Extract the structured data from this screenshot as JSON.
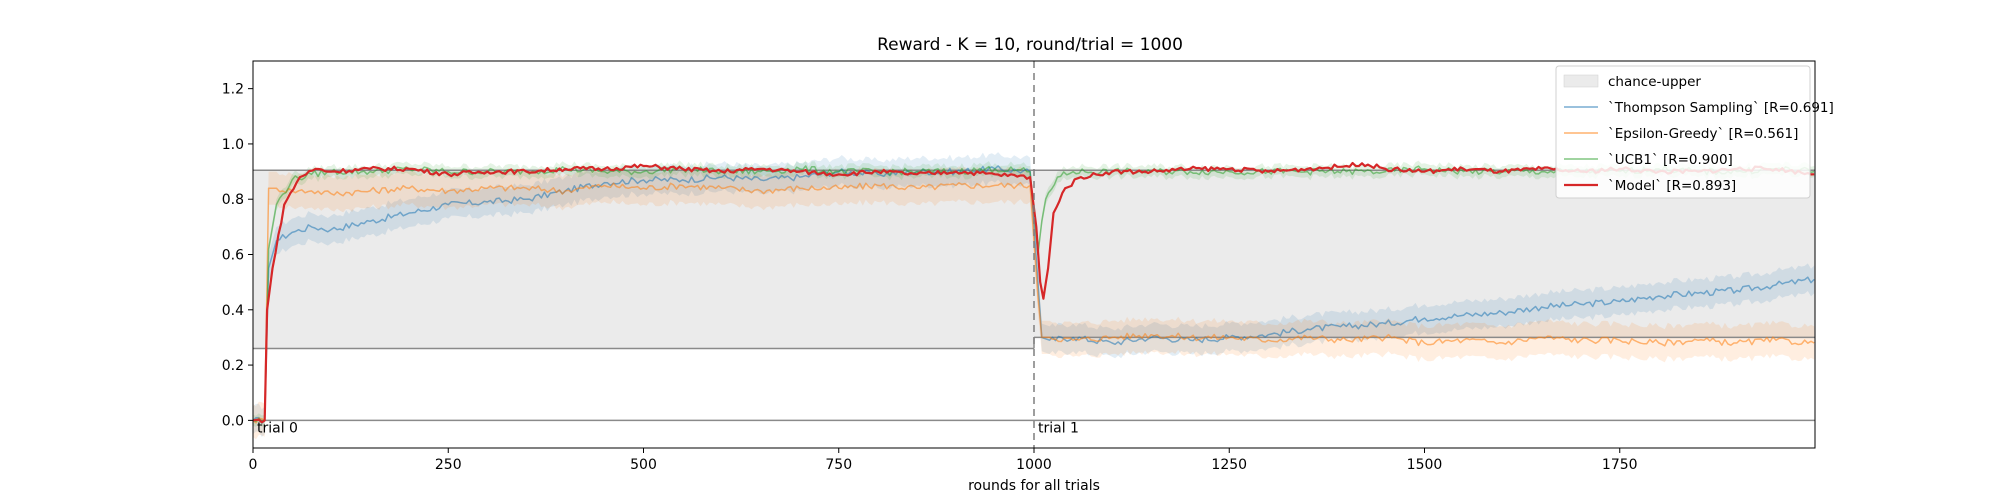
{
  "chart_data": {
    "type": "line",
    "title": "Reward - K = 10, round/trial = 1000",
    "xlabel": "rounds for all trials",
    "ylabel": "",
    "xlim": [
      0,
      2000
    ],
    "ylim": [
      -0.1,
      1.3
    ],
    "xticks": [
      0,
      250,
      500,
      750,
      1000,
      1250,
      1500,
      1750
    ],
    "xtick_labels": [
      "0",
      "250",
      "500",
      "750",
      "1000",
      "1250",
      "1500",
      "1750"
    ],
    "yticks": [
      0.0,
      0.2,
      0.4,
      0.6,
      0.8,
      1.0,
      1.2
    ],
    "ytick_labels": [
      "0.0",
      "0.2",
      "0.4",
      "0.6",
      "0.8",
      "1.0",
      "1.2"
    ],
    "grid": false,
    "legend": "top-right",
    "trial_boundary": 1000,
    "trial_labels": [
      {
        "text": "trial 0",
        "x": 0
      },
      {
        "text": "trial 1",
        "x": 1000
      }
    ],
    "chance_band": {
      "name": "chance-upper",
      "color": "#ebebeb",
      "segments": [
        {
          "x": [
            0,
            1000
          ],
          "lower": 0.26,
          "upper": 0.905
        },
        {
          "x": [
            1000,
            2000
          ],
          "lower": 0.3,
          "upper": 0.905
        }
      ]
    },
    "series": [
      {
        "name": "`Thompson Sampling` [R=0.691]",
        "color": "#1f77b4",
        "x": [
          0,
          15,
          20,
          30,
          50,
          75,
          100,
          150,
          200,
          250,
          300,
          350,
          400,
          450,
          500,
          550,
          600,
          650,
          700,
          750,
          800,
          850,
          900,
          950,
          995,
          1005,
          1010,
          1020,
          1050,
          1100,
          1150,
          1200,
          1250,
          1300,
          1350,
          1400,
          1450,
          1500,
          1550,
          1600,
          1650,
          1700,
          1750,
          1800,
          1850,
          1900,
          1950,
          1999
        ],
        "values": [
          0.0,
          0.0,
          0.55,
          0.65,
          0.68,
          0.7,
          0.69,
          0.72,
          0.75,
          0.78,
          0.79,
          0.8,
          0.83,
          0.86,
          0.87,
          0.87,
          0.88,
          0.87,
          0.88,
          0.9,
          0.89,
          0.9,
          0.9,
          0.91,
          0.9,
          0.5,
          0.3,
          0.29,
          0.3,
          0.28,
          0.3,
          0.29,
          0.3,
          0.31,
          0.33,
          0.34,
          0.35,
          0.37,
          0.38,
          0.39,
          0.41,
          0.42,
          0.43,
          0.45,
          0.46,
          0.47,
          0.49,
          0.51
        ],
        "band": 0.05
      },
      {
        "name": "`Epsilon-Greedy` [R=0.561]",
        "color": "#ff7f0e",
        "x": [
          0,
          15,
          20,
          30,
          50,
          75,
          100,
          150,
          200,
          250,
          300,
          350,
          400,
          450,
          500,
          550,
          600,
          650,
          700,
          750,
          800,
          850,
          900,
          950,
          995,
          1005,
          1010,
          1020,
          1050,
          1100,
          1150,
          1200,
          1250,
          1300,
          1350,
          1400,
          1450,
          1500,
          1550,
          1600,
          1650,
          1700,
          1750,
          1800,
          1850,
          1900,
          1950,
          1999
        ],
        "values": [
          0.0,
          0.0,
          0.84,
          0.84,
          0.83,
          0.83,
          0.82,
          0.83,
          0.84,
          0.83,
          0.84,
          0.84,
          0.83,
          0.85,
          0.84,
          0.85,
          0.84,
          0.83,
          0.84,
          0.84,
          0.85,
          0.84,
          0.85,
          0.85,
          0.85,
          0.45,
          0.3,
          0.3,
          0.29,
          0.3,
          0.31,
          0.3,
          0.3,
          0.29,
          0.3,
          0.29,
          0.3,
          0.28,
          0.29,
          0.28,
          0.3,
          0.29,
          0.29,
          0.28,
          0.29,
          0.28,
          0.29,
          0.28
        ],
        "band": 0.06
      },
      {
        "name": "`UCB1` [R=0.900]",
        "color": "#2ca02c",
        "x": [
          0,
          15,
          20,
          30,
          50,
          75,
          100,
          150,
          200,
          250,
          300,
          350,
          400,
          450,
          500,
          550,
          600,
          650,
          700,
          750,
          800,
          850,
          900,
          950,
          995,
          1005,
          1010,
          1015,
          1030,
          1050,
          1100,
          1150,
          1200,
          1250,
          1300,
          1350,
          1400,
          1450,
          1500,
          1550,
          1600,
          1650,
          1700,
          1750,
          1800,
          1850,
          1900,
          1950,
          1999
        ],
        "values": [
          0.0,
          0.0,
          0.62,
          0.78,
          0.87,
          0.89,
          0.9,
          0.9,
          0.91,
          0.9,
          0.9,
          0.9,
          0.91,
          0.9,
          0.9,
          0.91,
          0.9,
          0.9,
          0.91,
          0.9,
          0.9,
          0.9,
          0.9,
          0.91,
          0.9,
          0.6,
          0.72,
          0.8,
          0.88,
          0.9,
          0.9,
          0.9,
          0.9,
          0.9,
          0.9,
          0.9,
          0.9,
          0.9,
          0.91,
          0.9,
          0.9,
          0.9,
          0.9,
          0.9,
          0.91,
          0.9,
          0.9,
          0.91,
          0.9
        ],
        "band": 0.02
      },
      {
        "name": "`Model` [R=0.893]",
        "color": "#d62728",
        "x": [
          0,
          15,
          18,
          25,
          40,
          60,
          80,
          100,
          150,
          200,
          250,
          300,
          350,
          400,
          450,
          500,
          550,
          600,
          650,
          700,
          750,
          800,
          850,
          900,
          950,
          995,
          1003,
          1008,
          1012,
          1018,
          1025,
          1040,
          1060,
          1100,
          1150,
          1200,
          1250,
          1300,
          1350,
          1400,
          1420,
          1450,
          1500,
          1550,
          1600,
          1650,
          1700,
          1750,
          1800,
          1850,
          1900,
          1950,
          1999
        ],
        "values": [
          0.0,
          0.0,
          0.4,
          0.55,
          0.78,
          0.88,
          0.91,
          0.9,
          0.91,
          0.91,
          0.89,
          0.9,
          0.9,
          0.91,
          0.91,
          0.92,
          0.91,
          0.9,
          0.91,
          0.9,
          0.89,
          0.9,
          0.89,
          0.9,
          0.89,
          0.88,
          0.7,
          0.5,
          0.44,
          0.55,
          0.75,
          0.84,
          0.88,
          0.9,
          0.9,
          0.91,
          0.91,
          0.9,
          0.91,
          0.92,
          0.93,
          0.91,
          0.9,
          0.91,
          0.9,
          0.91,
          0.9,
          0.91,
          0.9,
          0.9,
          0.91,
          0.91,
          0.89
        ]
      }
    ]
  }
}
